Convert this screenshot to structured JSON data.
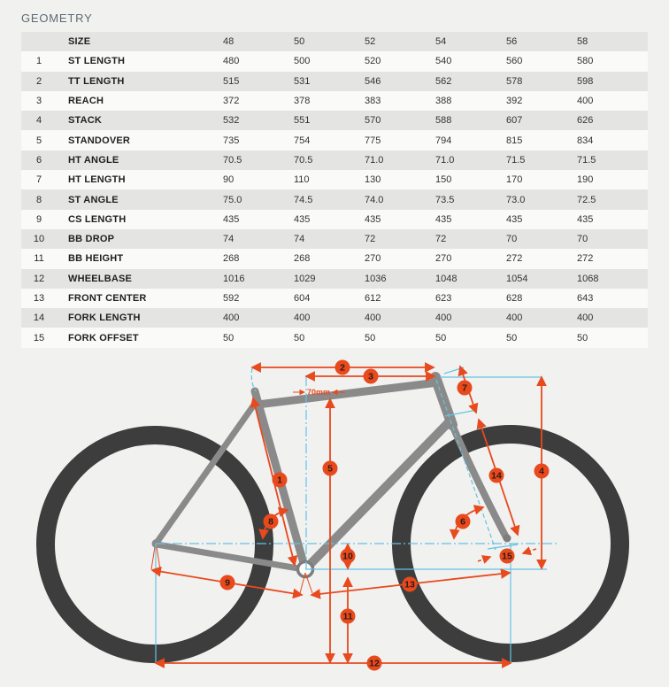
{
  "page": {
    "title": "GEOMETRY"
  },
  "table": {
    "rows": [
      {
        "num": "",
        "label": "SIZE",
        "values": [
          "48",
          "50",
          "52",
          "54",
          "56",
          "58"
        ]
      },
      {
        "num": "1",
        "label": "ST LENGTH",
        "values": [
          "480",
          "500",
          "520",
          "540",
          "560",
          "580"
        ]
      },
      {
        "num": "2",
        "label": "TT LENGTH",
        "values": [
          "515",
          "531",
          "546",
          "562",
          "578",
          "598"
        ]
      },
      {
        "num": "3",
        "label": "REACH",
        "values": [
          "372",
          "378",
          "383",
          "388",
          "392",
          "400"
        ]
      },
      {
        "num": "4",
        "label": "STACK",
        "values": [
          "532",
          "551",
          "570",
          "588",
          "607",
          "626"
        ]
      },
      {
        "num": "5",
        "label": "STANDOVER",
        "values": [
          "735",
          "754",
          "775",
          "794",
          "815",
          "834"
        ]
      },
      {
        "num": "6",
        "label": "HT ANGLE",
        "values": [
          "70.5",
          "70.5",
          "71.0",
          "71.0",
          "71.5",
          "71.5"
        ]
      },
      {
        "num": "7",
        "label": "HT LENGTH",
        "values": [
          "90",
          "110",
          "130",
          "150",
          "170",
          "190"
        ]
      },
      {
        "num": "8",
        "label": "ST ANGLE",
        "values": [
          "75.0",
          "74.5",
          "74.0",
          "73.5",
          "73.0",
          "72.5"
        ]
      },
      {
        "num": "9",
        "label": "CS LENGTH",
        "values": [
          "435",
          "435",
          "435",
          "435",
          "435",
          "435"
        ]
      },
      {
        "num": "10",
        "label": "BB DROP",
        "values": [
          "74",
          "74",
          "72",
          "72",
          "70",
          "70"
        ]
      },
      {
        "num": "11",
        "label": "BB HEIGHT",
        "values": [
          "268",
          "268",
          "270",
          "270",
          "272",
          "272"
        ]
      },
      {
        "num": "12",
        "label": "WHEELBASE",
        "values": [
          "1016",
          "1029",
          "1036",
          "1048",
          "1054",
          "1068"
        ]
      },
      {
        "num": "13",
        "label": "FRONT CENTER",
        "values": [
          "592",
          "604",
          "612",
          "623",
          "628",
          "643"
        ]
      },
      {
        "num": "14",
        "label": "FORK LENGTH",
        "values": [
          "400",
          "400",
          "400",
          "400",
          "400",
          "400"
        ]
      },
      {
        "num": "15",
        "label": "FORK OFFSET",
        "values": [
          "50",
          "50",
          "50",
          "50",
          "50",
          "50"
        ]
      }
    ]
  },
  "diagram": {
    "annotation_70mm": "70mm",
    "badges": [
      {
        "label": "1",
        "name": "st-length"
      },
      {
        "label": "2",
        "name": "tt-length"
      },
      {
        "label": "3",
        "name": "reach"
      },
      {
        "label": "4",
        "name": "stack"
      },
      {
        "label": "5",
        "name": "standover"
      },
      {
        "label": "6",
        "name": "ht-angle"
      },
      {
        "label": "7",
        "name": "ht-length"
      },
      {
        "label": "8",
        "name": "st-angle"
      },
      {
        "label": "9",
        "name": "cs-length"
      },
      {
        "label": "10",
        "name": "bb-drop"
      },
      {
        "label": "11",
        "name": "bb-height"
      },
      {
        "label": "12",
        "name": "wheelbase"
      },
      {
        "label": "13",
        "name": "front-center"
      },
      {
        "label": "14",
        "name": "fork-length"
      },
      {
        "label": "15",
        "name": "fork-offset"
      }
    ],
    "colors": {
      "accent": "#e8491d",
      "construction": "#63c3e2",
      "frame": "#8a8a8a",
      "wheel": "#3d3d3d"
    }
  }
}
